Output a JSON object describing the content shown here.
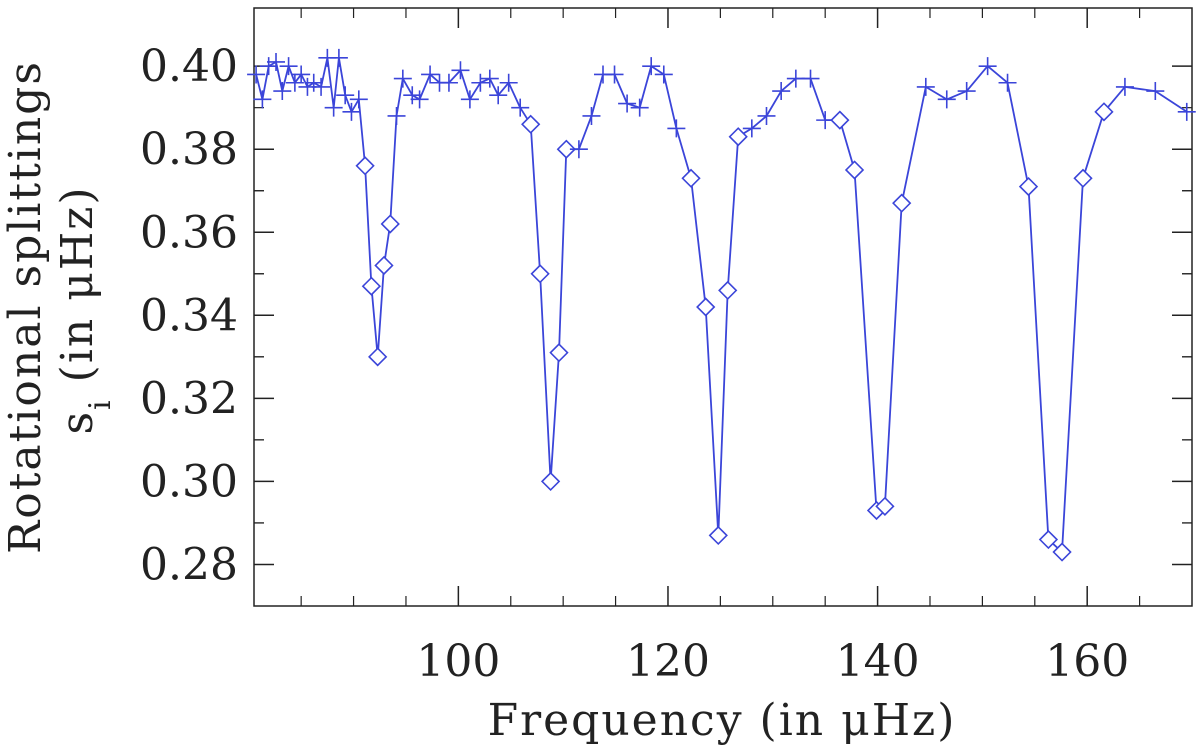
{
  "chart_data": {
    "type": "line",
    "xlabel": "Frequency (in μHz)",
    "ylabel_line1": "Rotational splittings",
    "ylabel_line2_prefix": "s",
    "ylabel_line2_sub": "i",
    "ylabel_line2_suffix": " (in μHz)",
    "xlim": [
      80.5,
      170
    ],
    "ylim": [
      0.27,
      0.414
    ],
    "x_ticks": [
      100,
      120,
      140,
      160
    ],
    "x_tick_labels": [
      "100",
      "120",
      "140",
      "160"
    ],
    "y_ticks": [
      0.28,
      0.3,
      0.32,
      0.34,
      0.36,
      0.38,
      0.4
    ],
    "y_tick_labels": [
      "0.28",
      "0.30",
      "0.32",
      "0.34",
      "0.36",
      "0.38",
      "0.40"
    ],
    "grid": false,
    "line_color": "#3b45d9",
    "markers": {
      "plus": "plus",
      "diamond": "diamond"
    },
    "points": [
      {
        "x": 80.7,
        "y": 0.398,
        "m": "plus"
      },
      {
        "x": 81.3,
        "y": 0.392,
        "m": "plus"
      },
      {
        "x": 81.9,
        "y": 0.4,
        "m": "plus"
      },
      {
        "x": 82.6,
        "y": 0.401,
        "m": "plus"
      },
      {
        "x": 83.2,
        "y": 0.394,
        "m": "plus"
      },
      {
        "x": 83.8,
        "y": 0.4,
        "m": "plus"
      },
      {
        "x": 84.4,
        "y": 0.396,
        "m": "plus"
      },
      {
        "x": 85.0,
        "y": 0.398,
        "m": "plus"
      },
      {
        "x": 85.6,
        "y": 0.395,
        "m": "plus"
      },
      {
        "x": 86.2,
        "y": 0.396,
        "m": "plus"
      },
      {
        "x": 86.9,
        "y": 0.395,
        "m": "plus"
      },
      {
        "x": 87.5,
        "y": 0.402,
        "m": "plus"
      },
      {
        "x": 88.1,
        "y": 0.39,
        "m": "plus"
      },
      {
        "x": 88.6,
        "y": 0.402,
        "m": "plus"
      },
      {
        "x": 89.2,
        "y": 0.393,
        "m": "plus"
      },
      {
        "x": 89.8,
        "y": 0.389,
        "m": "plus"
      },
      {
        "x": 90.5,
        "y": 0.392,
        "m": "plus"
      },
      {
        "x": 91.1,
        "y": 0.376,
        "m": "diamond"
      },
      {
        "x": 91.7,
        "y": 0.347,
        "m": "diamond"
      },
      {
        "x": 92.3,
        "y": 0.33,
        "m": "diamond"
      },
      {
        "x": 92.9,
        "y": 0.352,
        "m": "diamond"
      },
      {
        "x": 93.5,
        "y": 0.362,
        "m": "diamond"
      },
      {
        "x": 94.1,
        "y": 0.388,
        "m": "plus"
      },
      {
        "x": 94.7,
        "y": 0.397,
        "m": "plus"
      },
      {
        "x": 95.6,
        "y": 0.393,
        "m": "plus"
      },
      {
        "x": 96.3,
        "y": 0.392,
        "m": "plus"
      },
      {
        "x": 97.3,
        "y": 0.398,
        "m": "plus"
      },
      {
        "x": 98.2,
        "y": 0.396,
        "m": "plus"
      },
      {
        "x": 99.1,
        "y": 0.396,
        "m": "plus"
      },
      {
        "x": 100.2,
        "y": 0.399,
        "m": "plus"
      },
      {
        "x": 101.1,
        "y": 0.392,
        "m": "plus"
      },
      {
        "x": 102.1,
        "y": 0.396,
        "m": "plus"
      },
      {
        "x": 103.0,
        "y": 0.397,
        "m": "plus"
      },
      {
        "x": 103.8,
        "y": 0.393,
        "m": "plus"
      },
      {
        "x": 104.8,
        "y": 0.396,
        "m": "plus"
      },
      {
        "x": 105.9,
        "y": 0.39,
        "m": "plus"
      },
      {
        "x": 106.9,
        "y": 0.386,
        "m": "diamond"
      },
      {
        "x": 107.8,
        "y": 0.35,
        "m": "diamond"
      },
      {
        "x": 108.8,
        "y": 0.3,
        "m": "diamond"
      },
      {
        "x": 109.6,
        "y": 0.331,
        "m": "diamond"
      },
      {
        "x": 110.3,
        "y": 0.38,
        "m": "diamond"
      },
      {
        "x": 111.5,
        "y": 0.38,
        "m": "plus"
      },
      {
        "x": 112.7,
        "y": 0.388,
        "m": "plus"
      },
      {
        "x": 113.8,
        "y": 0.398,
        "m": "plus"
      },
      {
        "x": 114.9,
        "y": 0.398,
        "m": "plus"
      },
      {
        "x": 116.1,
        "y": 0.391,
        "m": "plus"
      },
      {
        "x": 117.3,
        "y": 0.39,
        "m": "plus"
      },
      {
        "x": 118.4,
        "y": 0.4,
        "m": "plus"
      },
      {
        "x": 119.6,
        "y": 0.398,
        "m": "plus"
      },
      {
        "x": 120.8,
        "y": 0.385,
        "m": "plus"
      },
      {
        "x": 122.2,
        "y": 0.373,
        "m": "diamond"
      },
      {
        "x": 123.6,
        "y": 0.342,
        "m": "diamond"
      },
      {
        "x": 124.8,
        "y": 0.287,
        "m": "diamond"
      },
      {
        "x": 125.7,
        "y": 0.346,
        "m": "diamond"
      },
      {
        "x": 126.7,
        "y": 0.383,
        "m": "diamond"
      },
      {
        "x": 128.0,
        "y": 0.385,
        "m": "plus"
      },
      {
        "x": 129.4,
        "y": 0.388,
        "m": "plus"
      },
      {
        "x": 130.8,
        "y": 0.394,
        "m": "plus"
      },
      {
        "x": 132.2,
        "y": 0.397,
        "m": "plus"
      },
      {
        "x": 133.6,
        "y": 0.397,
        "m": "plus"
      },
      {
        "x": 135.0,
        "y": 0.387,
        "m": "plus"
      },
      {
        "x": 136.4,
        "y": 0.387,
        "m": "diamond"
      },
      {
        "x": 137.8,
        "y": 0.375,
        "m": "diamond"
      },
      {
        "x": 139.9,
        "y": 0.293,
        "m": "diamond"
      },
      {
        "x": 140.7,
        "y": 0.294,
        "m": "diamond"
      },
      {
        "x": 142.3,
        "y": 0.367,
        "m": "diamond"
      },
      {
        "x": 144.6,
        "y": 0.395,
        "m": "plus"
      },
      {
        "x": 146.6,
        "y": 0.392,
        "m": "plus"
      },
      {
        "x": 148.5,
        "y": 0.394,
        "m": "plus"
      },
      {
        "x": 150.5,
        "y": 0.4,
        "m": "plus"
      },
      {
        "x": 152.4,
        "y": 0.396,
        "m": "plus"
      },
      {
        "x": 154.4,
        "y": 0.371,
        "m": "diamond"
      },
      {
        "x": 156.3,
        "y": 0.286,
        "m": "diamond"
      },
      {
        "x": 157.6,
        "y": 0.283,
        "m": "diamond"
      },
      {
        "x": 159.6,
        "y": 0.373,
        "m": "diamond"
      },
      {
        "x": 161.6,
        "y": 0.389,
        "m": "diamond"
      },
      {
        "x": 163.6,
        "y": 0.395,
        "m": "plus"
      },
      {
        "x": 166.5,
        "y": 0.394,
        "m": "plus"
      },
      {
        "x": 169.5,
        "y": 0.389,
        "m": "plus"
      }
    ]
  }
}
